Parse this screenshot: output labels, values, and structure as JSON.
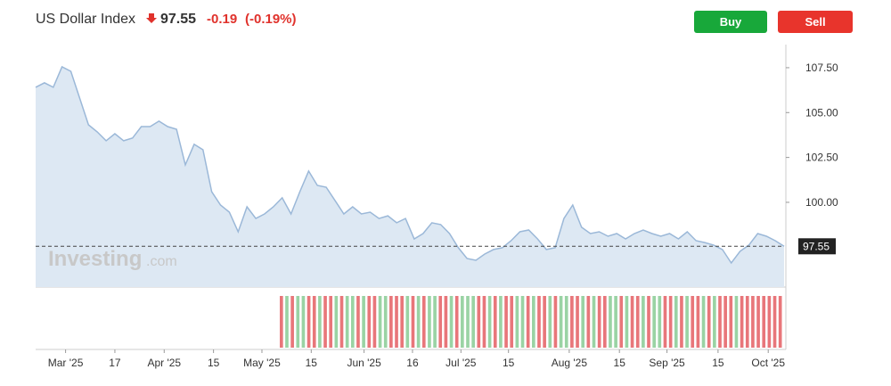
{
  "header": {
    "title": "US Dollar Index",
    "change": "-0.19",
    "change_pct": "(-0.19%)",
    "buy": "Buy",
    "sell": "Sell",
    "watermark": "Investing",
    "watermark_suffix": ".com"
  },
  "chart_data": {
    "type": "area",
    "color": "#9bb8d8",
    "fill": "#dde8f3",
    "last_price": 97.55,
    "values": [
      106.41,
      106.66,
      106.41,
      107.55,
      107.3,
      105.81,
      104.32,
      103.92,
      103.43,
      103.82,
      103.43,
      103.58,
      104.22,
      104.22,
      104.52,
      104.22,
      104.07,
      102.09,
      103.23,
      102.93,
      100.59,
      99.85,
      99.45,
      98.36,
      99.75,
      99.1,
      99.35,
      99.75,
      100.25,
      99.35,
      100.59,
      101.74,
      100.94,
      100.84,
      100.1,
      99.35,
      99.75,
      99.35,
      99.45,
      99.1,
      99.25,
      98.86,
      99.1,
      97.96,
      98.26,
      98.86,
      98.76,
      98.26,
      97.47,
      96.87,
      96.77,
      97.12,
      97.37,
      97.47,
      97.86,
      98.36,
      98.46,
      97.96,
      97.37,
      97.47,
      99.1,
      99.85,
      98.61,
      98.26,
      98.36,
      98.11,
      98.26,
      97.96,
      98.26,
      98.46,
      98.26,
      98.11,
      98.26,
      97.96,
      98.36,
      97.86,
      97.76,
      97.62,
      97.37,
      96.62,
      97.27,
      97.62,
      98.26,
      98.11,
      97.86,
      97.55
    ],
    "xlim": [
      0,
      85
    ],
    "xticks": [
      {
        "value": 3.4,
        "label": "Mar '25"
      },
      {
        "value": 9,
        "label": "17"
      },
      {
        "value": 14.6,
        "label": "Apr '25"
      },
      {
        "value": 20.2,
        "label": "15"
      },
      {
        "value": 25.7,
        "label": "May '25"
      },
      {
        "value": 31.3,
        "label": "15"
      },
      {
        "value": 37.3,
        "label": "Jun '25"
      },
      {
        "value": 42.8,
        "label": "16"
      },
      {
        "value": 48.3,
        "label": "Jul '25"
      },
      {
        "value": 53.7,
        "label": "15"
      },
      {
        "value": 60.6,
        "label": "Aug '25"
      },
      {
        "value": 66.3,
        "label": "15"
      },
      {
        "value": 71.7,
        "label": "Sep '25"
      },
      {
        "value": 77.5,
        "label": "15"
      },
      {
        "value": 83.2,
        "label": "Oct '25"
      }
    ],
    "ylim": [
      95.28,
      108.54
    ],
    "yticks": [
      {
        "value": 100,
        "label": "100.00"
      },
      {
        "value": 102.5,
        "label": "102.50"
      },
      {
        "value": 105,
        "label": "105.00"
      },
      {
        "value": 107.5,
        "label": "107.50"
      }
    ],
    "volume_colors": [
      "#e8767a",
      "#9ad3a4",
      "#e8767a",
      "#9ad3a4",
      "#9ad3a4",
      "#e8767a",
      "#e8767a",
      "#9ad3a4",
      "#e8767a",
      "#e8767a",
      "#9ad3a4",
      "#e8767a",
      "#9ad3a4",
      "#9ad3a4",
      "#e8767a",
      "#9ad3a4",
      "#e8767a",
      "#e8767a",
      "#9ad3a4",
      "#9ad3a4",
      "#e8767a",
      "#e8767a",
      "#e8767a",
      "#9ad3a4",
      "#e8767a",
      "#9ad3a4",
      "#e8767a",
      "#9ad3a4",
      "#9ad3a4",
      "#e8767a",
      "#e8767a",
      "#9ad3a4",
      "#e8767a",
      "#9ad3a4",
      "#9ad3a4",
      "#9ad3a4",
      "#e8767a",
      "#e8767a",
      "#9ad3a4",
      "#e8767a",
      "#9ad3a4",
      "#e8767a",
      "#e8767a",
      "#9ad3a4",
      "#9ad3a4",
      "#e8767a",
      "#9ad3a4",
      "#e8767a",
      "#e8767a",
      "#9ad3a4",
      "#e8767a",
      "#9ad3a4",
      "#9ad3a4",
      "#e8767a",
      "#e8767a",
      "#9ad3a4",
      "#e8767a",
      "#9ad3a4",
      "#e8767a",
      "#e8767a",
      "#9ad3a4",
      "#9ad3a4",
      "#e8767a",
      "#9ad3a4",
      "#e8767a",
      "#e8767a",
      "#9ad3a4",
      "#e8767a",
      "#9ad3a4",
      "#9ad3a4",
      "#e8767a",
      "#e8767a",
      "#9ad3a4",
      "#e8767a",
      "#9ad3a4",
      "#e8767a",
      "#e8767a",
      "#9ad3a4",
      "#e8767a",
      "#9ad3a4",
      "#e8767a",
      "#e8767a",
      "#e8767a",
      "#9ad3a4",
      "#e8767a",
      "#e8767a",
      "#e8767a",
      "#e8767a",
      "#e8767a",
      "#e8767a",
      "#e8767a",
      "#e8767a"
    ]
  }
}
